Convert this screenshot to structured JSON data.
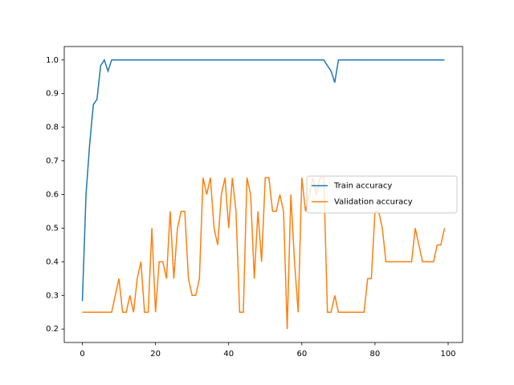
{
  "chart_data": {
    "type": "line",
    "x": [
      0,
      1,
      2,
      3,
      4,
      5,
      6,
      7,
      8,
      9,
      10,
      11,
      12,
      13,
      14,
      15,
      16,
      17,
      18,
      19,
      20,
      21,
      22,
      23,
      24,
      25,
      26,
      27,
      28,
      29,
      30,
      31,
      32,
      33,
      34,
      35,
      36,
      37,
      38,
      39,
      40,
      41,
      42,
      43,
      44,
      45,
      46,
      47,
      48,
      49,
      50,
      51,
      52,
      53,
      54,
      55,
      56,
      57,
      58,
      59,
      60,
      61,
      62,
      63,
      64,
      65,
      66,
      67,
      68,
      69,
      70,
      71,
      72,
      73,
      74,
      75,
      76,
      77,
      78,
      79,
      80,
      81,
      82,
      83,
      84,
      85,
      86,
      87,
      88,
      89,
      90,
      91,
      92,
      93,
      94,
      95,
      96,
      97,
      98,
      99
    ],
    "series": [
      {
        "name": "Train accuracy",
        "color": "#1f77b4",
        "values": [
          0.283,
          0.6,
          0.75,
          0.867,
          0.883,
          0.983,
          1,
          0.967,
          1,
          1,
          1,
          1,
          1,
          1,
          1,
          1,
          1,
          1,
          1,
          1,
          1,
          1,
          1,
          1,
          1,
          1,
          1,
          1,
          1,
          1,
          1,
          1,
          1,
          1,
          1,
          1,
          1,
          1,
          1,
          1,
          1,
          1,
          1,
          1,
          1,
          1,
          1,
          1,
          1,
          1,
          1,
          1,
          1,
          1,
          1,
          1,
          1,
          1,
          1,
          1,
          1,
          1,
          1,
          1,
          1,
          1,
          1,
          0.983,
          0.967,
          0.933,
          1,
          1,
          1,
          1,
          1,
          1,
          1,
          1,
          1,
          1,
          1,
          1,
          1,
          1,
          1,
          1,
          1,
          1,
          1,
          1,
          1,
          1,
          1,
          1,
          1,
          1,
          1,
          1,
          1,
          1
        ]
      },
      {
        "name": "Validation accuracy",
        "color": "#ff7f0e",
        "values": [
          0.25,
          0.25,
          0.25,
          0.25,
          0.25,
          0.25,
          0.25,
          0.25,
          0.25,
          0.3,
          0.35,
          0.25,
          0.25,
          0.3,
          0.25,
          0.35,
          0.4,
          0.25,
          0.25,
          0.5,
          0.25,
          0.4,
          0.4,
          0.35,
          0.55,
          0.35,
          0.5,
          0.55,
          0.55,
          0.35,
          0.3,
          0.3,
          0.35,
          0.65,
          0.6,
          0.65,
          0.5,
          0.45,
          0.6,
          0.65,
          0.5,
          0.65,
          0.55,
          0.25,
          0.25,
          0.65,
          0.6,
          0.35,
          0.55,
          0.4,
          0.65,
          0.65,
          0.55,
          0.55,
          0.6,
          0.55,
          0.2,
          0.6,
          0.4,
          0.25,
          0.65,
          0.55,
          0.6,
          0.65,
          0.6,
          0.65,
          0.65,
          0.25,
          0.25,
          0.3,
          0.25,
          0.25,
          0.25,
          0.25,
          0.25,
          0.25,
          0.25,
          0.25,
          0.35,
          0.35,
          0.55,
          0.55,
          0.5,
          0.4,
          0.4,
          0.4,
          0.4,
          0.4,
          0.4,
          0.4,
          0.4,
          0.5,
          0.45,
          0.4,
          0.4,
          0.4,
          0.4,
          0.45,
          0.45,
          0.5
        ]
      }
    ],
    "xlim": [
      -4.95,
      103.95
    ],
    "xticks": [
      0,
      20,
      40,
      60,
      80,
      100
    ],
    "ylim": [
      0.16,
      1.04
    ],
    "yticks": [
      0.2,
      0.3,
      0.4,
      0.5,
      0.6,
      0.7,
      0.8,
      0.9,
      {
        "value": 1,
        "label": "1.0"
      }
    ],
    "legend": "center right"
  }
}
